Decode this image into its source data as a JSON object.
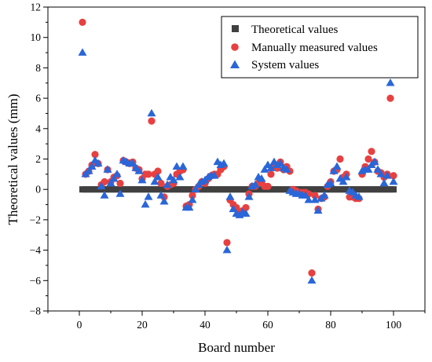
{
  "chart_data": {
    "type": "scatter",
    "title": "",
    "xlabel": "Board number",
    "ylabel": "Theoretical values (mm)",
    "xlim": [
      -10,
      110
    ],
    "ylim": [
      -8,
      12
    ],
    "xticks": [
      0,
      20,
      40,
      60,
      80,
      100
    ],
    "yticks": [
      -8,
      -6,
      -4,
      -2,
      0,
      2,
      4,
      6,
      8,
      10,
      12
    ],
    "grid": false,
    "legend_position": "top-right",
    "x": [
      1,
      2,
      3,
      4,
      5,
      6,
      7,
      8,
      9,
      10,
      11,
      12,
      13,
      14,
      15,
      16,
      17,
      18,
      19,
      20,
      21,
      22,
      23,
      24,
      25,
      26,
      27,
      28,
      29,
      30,
      31,
      32,
      33,
      34,
      35,
      36,
      37,
      38,
      39,
      40,
      41,
      42,
      43,
      44,
      45,
      46,
      47,
      48,
      49,
      50,
      51,
      52,
      53,
      54,
      55,
      56,
      57,
      58,
      59,
      60,
      61,
      62,
      63,
      64,
      65,
      66,
      67,
      68,
      69,
      70,
      71,
      72,
      73,
      74,
      75,
      76,
      77,
      78,
      79,
      80,
      81,
      82,
      83,
      84,
      85,
      86,
      87,
      88,
      89,
      90,
      91,
      92,
      93,
      94,
      95,
      96,
      97,
      98,
      99,
      100
    ],
    "series": [
      {
        "name": "Theoretical values",
        "marker": "square",
        "color": "#404040",
        "values": [
          0,
          0,
          0,
          0,
          0,
          0,
          0,
          0,
          0,
          0,
          0,
          0,
          0,
          0,
          0,
          0,
          0,
          0,
          0,
          0,
          0,
          0,
          0,
          0,
          0,
          0,
          0,
          0,
          0,
          0,
          0,
          0,
          0,
          0,
          0,
          0,
          0,
          0,
          0,
          0,
          0,
          0,
          0,
          0,
          0,
          0,
          0,
          0,
          0,
          0,
          0,
          0,
          0,
          0,
          0,
          0,
          0,
          0,
          0,
          0,
          0,
          0,
          0,
          0,
          0,
          0,
          0,
          0,
          0,
          0,
          0,
          0,
          0,
          0,
          0,
          0,
          0,
          0,
          0,
          0,
          0,
          0,
          0,
          0,
          0,
          0,
          0,
          0,
          0,
          0,
          0,
          0,
          0,
          0,
          0,
          0,
          0,
          0,
          0,
          0
        ]
      },
      {
        "name": "Manually measured values",
        "marker": "circle",
        "color": "#e84040",
        "values": [
          11,
          1,
          1.2,
          1.6,
          2.3,
          1.7,
          0.3,
          0.5,
          1.3,
          0.5,
          0.8,
          0.9,
          0.4,
          1.9,
          1.8,
          1.7,
          1.8,
          1.4,
          1.3,
          0.7,
          1,
          1,
          4.5,
          1,
          1.2,
          0.4,
          -0.5,
          0.2,
          0.3,
          0.4,
          1,
          1.2,
          1.3,
          -1.1,
          -1,
          -0.4,
          0,
          0.2,
          0.5,
          0.4,
          0.7,
          0.9,
          1,
          1,
          1.3,
          1.5,
          -3.5,
          -0.7,
          -1,
          -1.2,
          -1.5,
          -1.4,
          -1.2,
          -0.3,
          0.2,
          0.2,
          0.4,
          0.5,
          0.2,
          0.2,
          1,
          1.5,
          1.4,
          1.8,
          1.3,
          1.5,
          1.2,
          0,
          -0.1,
          -0.2,
          -0.2,
          -0.2,
          -0.3,
          -5.5,
          -0.4,
          -1.3,
          -0.6,
          -0.5,
          0.2,
          0.5,
          1.2,
          1.3,
          2,
          0.8,
          1,
          -0.5,
          -0.5,
          -0.6,
          -0.6,
          1,
          1.5,
          2,
          2.5,
          1.8,
          1.2,
          1.1,
          0.8,
          1,
          6,
          0.9
        ]
      },
      {
        "name": "System values",
        "marker": "triangle",
        "color": "#2a66d8",
        "values": [
          9,
          1,
          1.2,
          1.5,
          1.9,
          1.7,
          0.2,
          -0.4,
          1.3,
          0.4,
          0.7,
          1,
          -0.3,
          1.9,
          1.8,
          1.7,
          1.7,
          1.4,
          1.2,
          0.6,
          -1,
          -0.5,
          5,
          0.5,
          0.8,
          -0.4,
          -0.8,
          0.3,
          0.8,
          0.6,
          1.5,
          0.8,
          1.5,
          -1.2,
          -1.2,
          -0.7,
          0,
          0.3,
          0.5,
          0.6,
          0.8,
          0.9,
          0.9,
          1.8,
          1.6,
          1.7,
          -4,
          -0.5,
          -1.3,
          -1.6,
          -1.7,
          -1.5,
          -1.6,
          -0.5,
          0.2,
          0.3,
          0.8,
          0.7,
          1.3,
          1.6,
          1.4,
          1.8,
          1.6,
          1.7,
          1.4,
          1.3,
          -0.1,
          -0.2,
          -0.3,
          -0.3,
          -0.4,
          -0.4,
          -0.7,
          -6,
          -0.7,
          -1.4,
          -0.6,
          -0.4,
          0.3,
          0.4,
          1.2,
          1.5,
          0.7,
          0.5,
          0.8,
          -0.1,
          -0.2,
          -0.4,
          -0.5,
          1.2,
          1.3,
          1.3,
          1.6,
          1.8,
          1.3,
          1,
          0.4,
          0.9,
          7,
          0.5
        ]
      }
    ]
  }
}
